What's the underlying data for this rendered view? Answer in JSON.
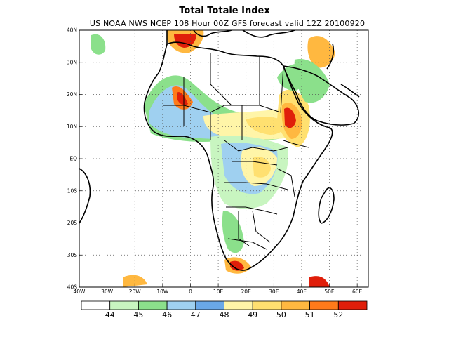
{
  "title": "Total Totale Index",
  "subtitle": "US NOAA NWS NCEP 108 Hour 00Z GFS forecast valid 12Z 20100920",
  "map": {
    "lat_range": [
      -40,
      40
    ],
    "lon_range": [
      -40,
      64
    ],
    "lat_ticks": [
      "40N",
      "30N",
      "20N",
      "10N",
      "EQ",
      "10S",
      "20S",
      "30S",
      "40S"
    ],
    "lon_ticks": [
      "40W",
      "30W",
      "20W",
      "10W",
      "0",
      "10E",
      "20E",
      "30E",
      "40E",
      "50E",
      "60E"
    ],
    "grid": "dotted"
  },
  "colorbar": {
    "colors": [
      "#ffffff",
      "#c8f5c0",
      "#8be08b",
      "#9fd0f0",
      "#6aa8e8",
      "#fff5a8",
      "#ffe070",
      "#ffb840",
      "#ff7a1a",
      "#e01e0a"
    ],
    "labels": [
      "44",
      "45",
      "46",
      "47",
      "48",
      "49",
      "50",
      "51",
      "52"
    ]
  }
}
